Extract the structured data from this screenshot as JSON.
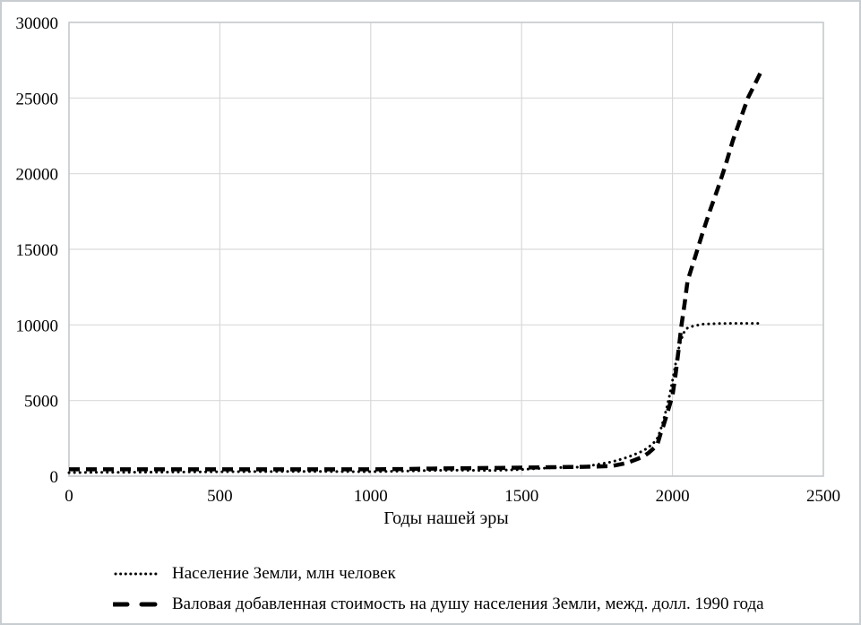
{
  "frame": {
    "background": "#ffffff",
    "border_color": "#c8cdd1"
  },
  "chart_data": {
    "type": "line",
    "xlabel": "Годы нашей эры",
    "ylabel": "",
    "xlim": [
      0,
      2500
    ],
    "ylim": [
      0,
      30000
    ],
    "x_ticks": [
      0,
      500,
      1000,
      1500,
      2000,
      2500
    ],
    "y_ticks": [
      0,
      5000,
      10000,
      15000,
      20000,
      25000,
      30000
    ],
    "grid": true,
    "legend_position": "bottom-left",
    "colors": {
      "grid": "#d9d9d9",
      "plot_border": "#c3c7ca",
      "text": "#000000"
    },
    "series": [
      {
        "name": "Население Земли, млн человек",
        "style": "dotted",
        "color": "#000000",
        "points": [
          [
            0,
            230
          ],
          [
            100,
            252
          ],
          [
            200,
            257
          ],
          [
            300,
            265
          ],
          [
            400,
            278
          ],
          [
            500,
            290
          ],
          [
            600,
            300
          ],
          [
            700,
            308
          ],
          [
            800,
            315
          ],
          [
            900,
            305
          ],
          [
            1000,
            295
          ],
          [
            1100,
            330
          ],
          [
            1200,
            380
          ],
          [
            1300,
            390
          ],
          [
            1400,
            375
          ],
          [
            1500,
            440
          ],
          [
            1600,
            555
          ],
          [
            1700,
            600
          ],
          [
            1750,
            770
          ],
          [
            1800,
            950
          ],
          [
            1850,
            1240
          ],
          [
            1900,
            1650
          ],
          [
            1920,
            1900
          ],
          [
            1940,
            2250
          ],
          [
            1950,
            2520
          ],
          [
            1960,
            3020
          ],
          [
            1970,
            3700
          ],
          [
            1980,
            4450
          ],
          [
            1990,
            5300
          ],
          [
            2000,
            6300
          ],
          [
            2010,
            7400
          ],
          [
            2020,
            8400
          ],
          [
            2030,
            9100
          ],
          [
            2040,
            9600
          ],
          [
            2050,
            9800
          ],
          [
            2060,
            9880
          ],
          [
            2075,
            9950
          ],
          [
            2100,
            10050
          ],
          [
            2150,
            10090
          ],
          [
            2200,
            10100
          ],
          [
            2250,
            10100
          ],
          [
            2300,
            10100
          ]
        ]
      },
      {
        "name": "Валовая добавленная стоимость на душу населения Земли, межд. долл. 1990 года",
        "style": "dashed",
        "color": "#000000",
        "points": [
          [
            0,
            450
          ],
          [
            100,
            450
          ],
          [
            200,
            450
          ],
          [
            300,
            450
          ],
          [
            400,
            450
          ],
          [
            500,
            450
          ],
          [
            600,
            450
          ],
          [
            700,
            450
          ],
          [
            800,
            450
          ],
          [
            900,
            450
          ],
          [
            1000,
            450
          ],
          [
            1100,
            470
          ],
          [
            1200,
            500
          ],
          [
            1300,
            520
          ],
          [
            1400,
            540
          ],
          [
            1500,
            565
          ],
          [
            1600,
            595
          ],
          [
            1700,
            615
          ],
          [
            1750,
            640
          ],
          [
            1800,
            670
          ],
          [
            1850,
            875
          ],
          [
            1900,
            1260
          ],
          [
            1920,
            1530
          ],
          [
            1940,
            1880
          ],
          [
            1950,
            2110
          ],
          [
            1960,
            2770
          ],
          [
            1970,
            3340
          ],
          [
            1980,
            4000
          ],
          [
            1990,
            4650
          ],
          [
            2000,
            5330
          ],
          [
            2010,
            6700
          ],
          [
            2020,
            8300
          ],
          [
            2030,
            10000
          ],
          [
            2040,
            11400
          ],
          [
            2050,
            12900
          ],
          [
            2075,
            14500
          ],
          [
            2100,
            16100
          ],
          [
            2125,
            17600
          ],
          [
            2150,
            19000
          ],
          [
            2175,
            20500
          ],
          [
            2200,
            22200
          ],
          [
            2225,
            23600
          ],
          [
            2250,
            25000
          ],
          [
            2275,
            26000
          ],
          [
            2300,
            27000
          ]
        ]
      }
    ]
  }
}
